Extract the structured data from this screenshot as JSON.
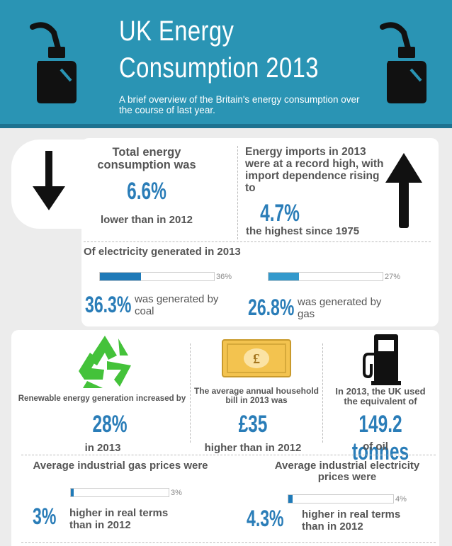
{
  "header": {
    "title_line1": "UK Energy",
    "title_line2": "Consumption 2013",
    "subtitle": "A brief overview of the Britain's energy consumption over the course of last year."
  },
  "total": {
    "label": "Total energy consumption was",
    "value": "6.6%",
    "footer": "lower than in 2012"
  },
  "imports": {
    "label": "Energy imports in 2013 were at a record high, with import dependence rising to",
    "value": "4.7%",
    "footer": "the highest since 1975"
  },
  "electricity": {
    "heading": "Of electricity generated in 2013",
    "coal": {
      "bar_label": "36%",
      "fill": 0.36,
      "value": "36.3%",
      "text": "was generated by coal"
    },
    "gas": {
      "bar_label": "27%",
      "fill": 0.27,
      "value": "26.8%",
      "text": "was generated by gas"
    }
  },
  "renewable": {
    "label": "Renewable energy generation increased by",
    "value": "28%",
    "footer": "in 2013"
  },
  "bill": {
    "label": "The average annual household bill in 2013 was",
    "value": "£35",
    "footer": "higher than in 2012",
    "note_symbol": "£"
  },
  "oil": {
    "label": "In 2013, the UK used the equivalent of",
    "value": "149.2 tonnes",
    "footer": "of oil"
  },
  "gas_prices": {
    "label": "Average industrial gas prices were",
    "bar_label": "3%",
    "fill": 0.03,
    "value": "3%",
    "text": "higher in real terms than in 2012"
  },
  "elec_prices": {
    "label": "Average industrial electricity prices were",
    "bar_label": "4%",
    "fill": 0.04,
    "value": "4.3%",
    "text": "higher in real terms than in 2012"
  },
  "colors": {
    "header": "#2a94b4",
    "accent_blue": "#2a7db8",
    "bar_blue": "#1f7ab8",
    "gas_bar": "#3399cc",
    "green": "#44c23a",
    "note_gold": "#f3c34f"
  },
  "icons": [
    "fuel-can-icon",
    "arrow-down-icon",
    "arrow-up-icon",
    "recycle-icon",
    "banknote-icon",
    "fuel-pump-icon"
  ]
}
